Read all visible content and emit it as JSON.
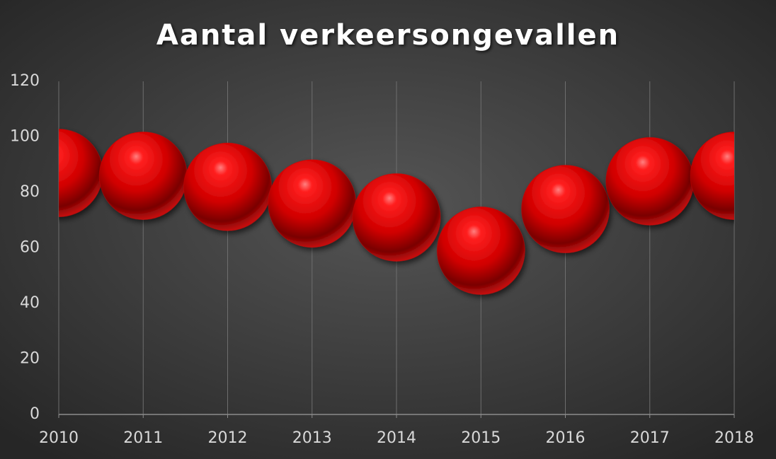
{
  "chart_data": {
    "type": "scatter",
    "title": "Aantal verkeersongevallen",
    "x": [
      2010,
      2011,
      2012,
      2013,
      2014,
      2015,
      2016,
      2017,
      2018
    ],
    "values": [
      87,
      86,
      82,
      76,
      71,
      59,
      74,
      84,
      86
    ],
    "color": "#e00000",
    "xlim": [
      2010,
      2018
    ],
    "xticks": [
      2010,
      2011,
      2012,
      2013,
      2014,
      2015,
      2016,
      2017,
      2018
    ],
    "ylim": [
      0,
      120
    ],
    "yticks": [
      0,
      20,
      40,
      60,
      80,
      100,
      120
    ],
    "grid": true
  }
}
